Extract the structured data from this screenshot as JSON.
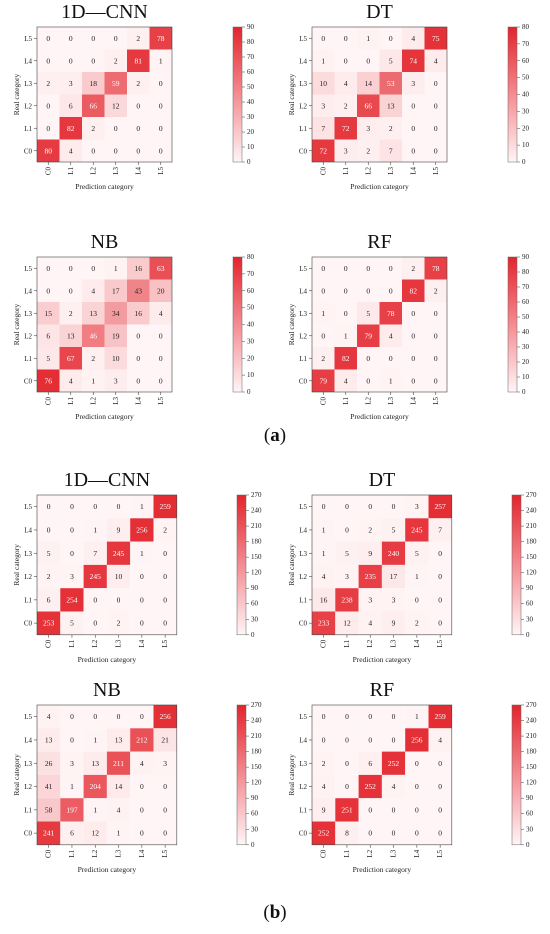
{
  "figure": {
    "sub_a_label": "a",
    "sub_b_label": "b",
    "colors": {
      "low": "#fff5f6",
      "high": "#e3242b",
      "text_dark": "#222222",
      "text_light": "#ffffff"
    }
  },
  "chart_data": [
    {
      "type": "heatmap",
      "group": "a",
      "title": "1D—CNN",
      "xlabel": "Prediction category",
      "ylabel": "Real category",
      "x_categories": [
        "C0",
        "L1",
        "L2",
        "L3",
        "L4",
        "L5"
      ],
      "y_categories": [
        "L5",
        "L4",
        "L3",
        "L2",
        "L1",
        "C0"
      ],
      "values": [
        [
          0,
          0,
          0,
          0,
          2,
          78
        ],
        [
          0,
          0,
          0,
          2,
          81,
          1
        ],
        [
          2,
          3,
          18,
          59,
          2,
          0
        ],
        [
          0,
          6,
          66,
          12,
          0,
          0
        ],
        [
          0,
          82,
          2,
          0,
          0,
          0
        ],
        [
          80,
          4,
          0,
          0,
          0,
          0
        ]
      ],
      "colorbar_ticks": [
        0,
        10,
        20,
        30,
        40,
        50,
        60,
        70,
        80,
        90
      ],
      "colorbar_max": 90
    },
    {
      "type": "heatmap",
      "group": "a",
      "title": "DT",
      "xlabel": "Prediction category",
      "ylabel": "Real category",
      "x_categories": [
        "C0",
        "L1",
        "L2",
        "L3",
        "L4",
        "L5"
      ],
      "y_categories": [
        "L5",
        "L4",
        "L3",
        "L2",
        "L1",
        "C0"
      ],
      "values": [
        [
          0,
          0,
          1,
          0,
          4,
          75
        ],
        [
          1,
          0,
          0,
          5,
          74,
          4
        ],
        [
          10,
          4,
          14,
          53,
          3,
          0
        ],
        [
          3,
          2,
          66,
          13,
          0,
          0
        ],
        [
          7,
          72,
          3,
          2,
          0,
          0
        ],
        [
          72,
          3,
          2,
          7,
          0,
          0
        ]
      ],
      "colorbar_ticks": [
        0,
        10,
        20,
        30,
        40,
        50,
        60,
        70,
        80
      ],
      "colorbar_max": 80
    },
    {
      "type": "heatmap",
      "group": "a",
      "title": "NB",
      "xlabel": "Prediction category",
      "ylabel": "Real category",
      "x_categories": [
        "C0",
        "L1",
        "L2",
        "L3",
        "L4",
        "L5"
      ],
      "y_categories": [
        "L5",
        "L4",
        "L3",
        "L2",
        "L1",
        "C0"
      ],
      "values": [
        [
          0,
          0,
          0,
          1,
          16,
          63
        ],
        [
          0,
          0,
          4,
          17,
          43,
          20
        ],
        [
          15,
          2,
          13,
          34,
          16,
          4
        ],
        [
          6,
          13,
          46,
          19,
          0,
          0
        ],
        [
          5,
          67,
          2,
          10,
          0,
          0
        ],
        [
          76,
          4,
          1,
          3,
          0,
          0
        ]
      ],
      "colorbar_ticks": [
        0,
        10,
        20,
        30,
        40,
        50,
        60,
        70,
        80
      ],
      "colorbar_max": 80
    },
    {
      "type": "heatmap",
      "group": "a",
      "title": "RF",
      "xlabel": "Prediction category",
      "ylabel": "Real category",
      "x_categories": [
        "C0",
        "L1",
        "L2",
        "L3",
        "L4",
        "L5"
      ],
      "y_categories": [
        "L5",
        "L4",
        "L3",
        "L2",
        "L1",
        "C0"
      ],
      "values": [
        [
          0,
          0,
          0,
          0,
          2,
          78
        ],
        [
          0,
          0,
          0,
          0,
          82,
          2
        ],
        [
          1,
          0,
          5,
          78,
          0,
          0
        ],
        [
          0,
          1,
          79,
          4,
          0,
          0
        ],
        [
          2,
          82,
          0,
          0,
          0,
          0
        ],
        [
          79,
          4,
          0,
          1,
          0,
          0
        ]
      ],
      "colorbar_ticks": [
        0,
        10,
        20,
        30,
        40,
        50,
        60,
        70,
        80,
        90
      ],
      "colorbar_max": 90
    },
    {
      "type": "heatmap",
      "group": "b",
      "title": "1D—CNN",
      "xlabel": "Prediction category",
      "ylabel": "Real category",
      "x_categories": [
        "C0",
        "L1",
        "L2",
        "L3",
        "L4",
        "L5"
      ],
      "y_categories": [
        "L5",
        "L4",
        "L3",
        "L2",
        "L1",
        "C0"
      ],
      "values": [
        [
          0,
          0,
          0,
          0,
          1,
          259
        ],
        [
          0,
          0,
          1,
          9,
          256,
          2
        ],
        [
          5,
          0,
          7,
          245,
          1,
          0
        ],
        [
          2,
          3,
          245,
          10,
          0,
          0
        ],
        [
          6,
          254,
          0,
          0,
          0,
          0
        ],
        [
          253,
          5,
          0,
          2,
          0,
          0
        ]
      ],
      "colorbar_ticks": [
        0,
        30,
        60,
        90,
        120,
        150,
        180,
        210,
        240,
        270
      ],
      "colorbar_max": 270
    },
    {
      "type": "heatmap",
      "group": "b",
      "title": "DT",
      "xlabel": "Prediction category",
      "ylabel": "Real category",
      "x_categories": [
        "C0",
        "L1",
        "L2",
        "L3",
        "L4",
        "L5"
      ],
      "y_categories": [
        "L5",
        "L4",
        "L3",
        "L2",
        "L1",
        "C0"
      ],
      "values": [
        [
          0,
          0,
          0,
          0,
          3,
          257
        ],
        [
          1,
          0,
          2,
          5,
          245,
          7
        ],
        [
          1,
          5,
          9,
          240,
          5,
          0
        ],
        [
          4,
          3,
          235,
          17,
          1,
          0
        ],
        [
          16,
          238,
          3,
          3,
          0,
          0
        ],
        [
          233,
          12,
          4,
          9,
          2,
          0
        ]
      ],
      "colorbar_ticks": [
        0,
        30,
        60,
        90,
        120,
        150,
        180,
        210,
        240,
        270
      ],
      "colorbar_max": 270
    },
    {
      "type": "heatmap",
      "group": "b",
      "title": "NB",
      "xlabel": "Prediction category",
      "ylabel": "Real category",
      "x_categories": [
        "C0",
        "L1",
        "L2",
        "L3",
        "L4",
        "L5"
      ],
      "y_categories": [
        "L5",
        "L4",
        "L3",
        "L2",
        "L1",
        "C0"
      ],
      "values": [
        [
          4,
          0,
          0,
          0,
          0,
          256
        ],
        [
          13,
          0,
          1,
          13,
          212,
          21
        ],
        [
          26,
          3,
          13,
          211,
          4,
          3
        ],
        [
          41,
          1,
          204,
          14,
          0,
          0
        ],
        [
          58,
          197,
          1,
          4,
          0,
          0
        ],
        [
          241,
          6,
          12,
          1,
          0,
          0
        ]
      ],
      "colorbar_ticks": [
        0,
        30,
        60,
        90,
        120,
        150,
        180,
        210,
        240,
        270
      ],
      "colorbar_max": 270
    },
    {
      "type": "heatmap",
      "group": "b",
      "title": "RF",
      "xlabel": "Prediction category",
      "ylabel": "Real category",
      "x_categories": [
        "C0",
        "L1",
        "L2",
        "L3",
        "L4",
        "L5"
      ],
      "y_categories": [
        "L5",
        "L4",
        "L3",
        "L2",
        "L1",
        "C0"
      ],
      "values": [
        [
          0,
          0,
          0,
          0,
          1,
          259
        ],
        [
          0,
          0,
          0,
          0,
          256,
          4
        ],
        [
          2,
          0,
          6,
          252,
          0,
          0
        ],
        [
          4,
          0,
          252,
          4,
          0,
          0
        ],
        [
          9,
          251,
          0,
          0,
          0,
          0
        ],
        [
          252,
          8,
          0,
          0,
          0,
          0
        ]
      ],
      "colorbar_ticks": [
        0,
        30,
        60,
        90,
        120,
        150,
        180,
        210,
        240,
        270
      ],
      "colorbar_max": 270
    }
  ]
}
